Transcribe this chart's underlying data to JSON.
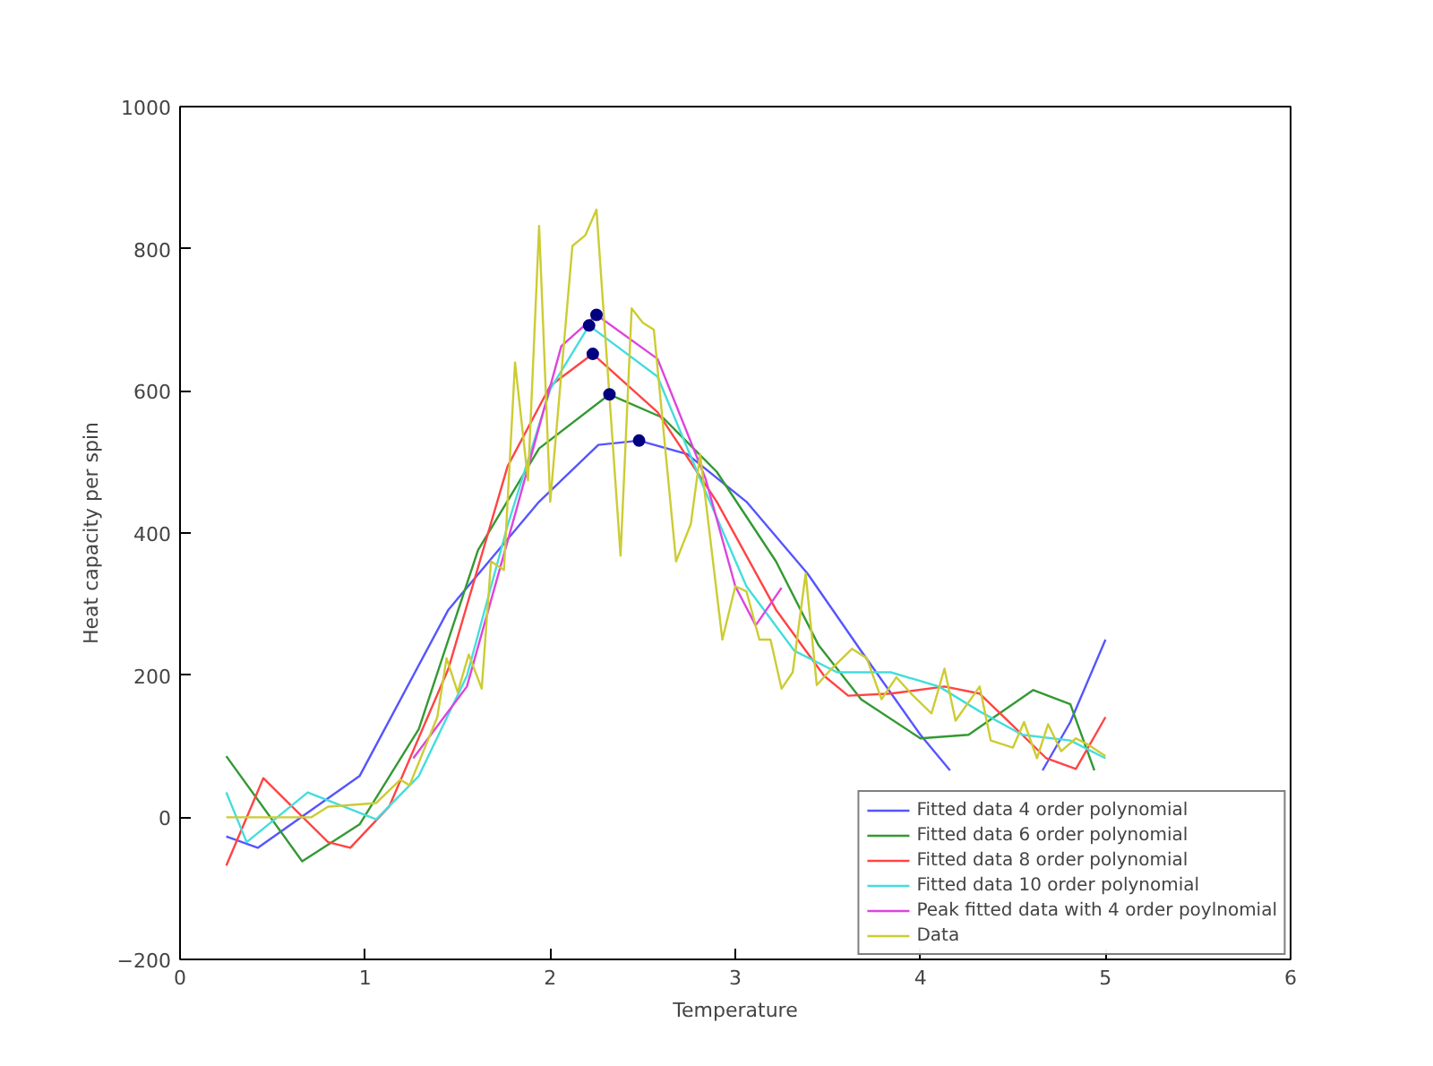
{
  "chart_data": {
    "type": "line",
    "xlabel": "Temperature",
    "ylabel": "Heat capacity per spin",
    "xlim": [
      0,
      6
    ],
    "ylim": [
      -200,
      1000
    ],
    "xticks": [
      0,
      1,
      2,
      3,
      4,
      5,
      6
    ],
    "yticks": [
      -200,
      0,
      200,
      400,
      600,
      800,
      1000
    ],
    "grid": false,
    "legend": "bottom right",
    "line_style": "solid",
    "marker": "none",
    "series": [
      {
        "name": "Fitted data 4 order polynomial",
        "color": "#5555ff",
        "x": [
          0.25,
          0.42,
          0.97,
          1.45,
          1.94,
          2.26,
          2.48,
          2.74,
          3.06,
          3.39,
          3.68,
          4.0,
          4.16,
          4.4,
          4.66,
          4.81,
          5.0
        ],
        "values": [
          -27,
          -43,
          58,
          292,
          444,
          524,
          530,
          511,
          444,
          343,
          234,
          116,
          66,
          null,
          66,
          134,
          250
        ]
      },
      {
        "name": "Fitted data 6 order polynomial",
        "color": "#339933",
        "x": [
          0.25,
          0.66,
          0.97,
          1.29,
          1.61,
          1.94,
          2.32,
          2.61,
          2.9,
          3.22,
          3.45,
          3.68,
          4.0,
          4.26,
          4.61,
          4.81,
          4.94
        ],
        "values": [
          86,
          -62,
          -10,
          124,
          376,
          519,
          595,
          562,
          486,
          360,
          242,
          166,
          111,
          116,
          179,
          159,
          66
        ]
      },
      {
        "name": "Fitted data 8 order polynomial",
        "color": "#ff4444",
        "x": [
          0.25,
          0.45,
          0.8,
          0.92,
          1.13,
          1.45,
          1.77,
          2.0,
          2.23,
          2.58,
          2.9,
          3.22,
          3.48,
          3.61,
          3.84,
          4.13,
          4.32,
          4.48,
          4.68,
          4.84,
          5.0
        ],
        "values": [
          -68,
          55,
          -35,
          -43,
          15,
          209,
          494,
          607,
          652,
          570,
          444,
          292,
          199,
          171,
          174,
          184,
          174,
          134,
          83,
          68,
          141
        ]
      },
      {
        "name": "Fitted data 10 order polynomial",
        "color": "#44dddd",
        "x": [
          0.25,
          0.36,
          0.69,
          1.06,
          1.29,
          1.55,
          1.77,
          2.0,
          2.21,
          2.58,
          2.81,
          3.06,
          3.32,
          3.55,
          3.84,
          4.1,
          4.32,
          4.55,
          4.81,
          5.0
        ],
        "values": [
          35,
          -35,
          35,
          -3,
          58,
          199,
          411,
          602,
          692,
          620,
          476,
          325,
          234,
          204,
          204,
          184,
          149,
          116,
          108,
          83
        ]
      },
      {
        "name": "Peak fitted data with 4 order poylnomial",
        "color": "#dd44dd",
        "x": [
          1.26,
          1.55,
          1.81,
          2.06,
          2.25,
          2.58,
          2.84,
          3.0,
          3.11,
          3.25
        ],
        "values": [
          83,
          184,
          426,
          663,
          707,
          645,
          476,
          325,
          270,
          323
        ]
      },
      {
        "name": "Data",
        "color": "#cccc33",
        "x": [
          0.25,
          0.71,
          0.8,
          1.06,
          1.19,
          1.24,
          1.39,
          1.44,
          1.5,
          1.56,
          1.63,
          1.68,
          1.75,
          1.81,
          1.88,
          1.94,
          2.0,
          2.12,
          2.19,
          2.25,
          2.38,
          2.44,
          2.5,
          2.56,
          2.68,
          2.76,
          2.81,
          2.93,
          3.0,
          3.06,
          3.13,
          3.19,
          3.25,
          3.31,
          3.38,
          3.44,
          3.52,
          3.63,
          3.71,
          3.79,
          3.87,
          3.95,
          4.06,
          4.13,
          4.19,
          4.32,
          4.38,
          4.5,
          4.56,
          4.63,
          4.69,
          4.76,
          4.84,
          4.9,
          5.0
        ],
        "values": [
          0,
          0,
          15,
          20,
          53,
          45,
          141,
          224,
          176,
          229,
          181,
          360,
          348,
          640,
          474,
          832,
          444,
          804,
          819,
          855,
          368,
          716,
          696,
          686,
          360,
          413,
          511,
          250,
          325,
          318,
          250,
          250,
          181,
          204,
          343,
          186,
          209,
          237,
          224,
          166,
          197,
          174,
          146,
          209,
          136,
          184,
          108,
          98,
          134,
          83,
          131,
          93,
          111,
          103,
          86
        ]
      },
      {
        "color": "#000080",
        "type": "scatter",
        "marker": "circle",
        "x": [
          2.48,
          2.32,
          2.23,
          2.21,
          2.25
        ],
        "values": [
          530,
          595,
          652,
          692,
          707
        ]
      }
    ]
  }
}
